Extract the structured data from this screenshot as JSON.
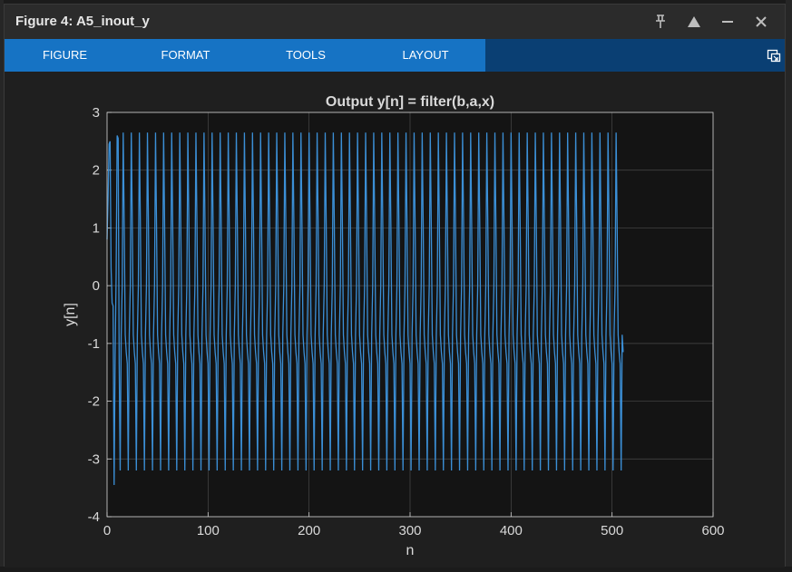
{
  "window": {
    "title": "Figure 4: A5_inout_y",
    "controls": [
      "pin-icon",
      "maximize-icon",
      "minimize-icon",
      "close-icon"
    ],
    "control_glyphs": {
      "pin": "⊥",
      "maximize": "▲",
      "minimize": "–",
      "close": "✕"
    }
  },
  "toolstrip": {
    "tabs": [
      {
        "label": "FIGURE"
      },
      {
        "label": "FORMAT"
      },
      {
        "label": "TOOLS"
      },
      {
        "label": "LAYOUT"
      }
    ],
    "undock_icon": "undock-icon"
  },
  "colors": {
    "tab_bar": "#1673c4",
    "toolstrip_bg": "#0a3f73",
    "axes_bg": "#141414",
    "line": "#3b8fd6",
    "grid": "#4a4a4a",
    "text": "#d9d9d9"
  },
  "chart_data": {
    "type": "line",
    "title": "Output y[n] = filter(b,a,x)",
    "xlabel": "n",
    "ylabel": "y[n]",
    "xlim": [
      0,
      600
    ],
    "ylim": [
      -4,
      3
    ],
    "xticks": [
      0,
      100,
      200,
      300,
      400,
      500,
      600
    ],
    "yticks": [
      3,
      2,
      1,
      0,
      -1,
      -2,
      -3,
      -4
    ],
    "grid": true,
    "n_samples": 512,
    "series": [
      {
        "pattern_period": 8,
        "cycle_values": [
          2.65,
          1.05,
          -0.85,
          -1.15,
          -1.35,
          -3.2,
          -0.85,
          0.0
        ],
        "initial_values": [
          0.8,
          1.5,
          2.45,
          2.5,
          0.3,
          -0.3,
          -0.35,
          -3.45,
          -1.2,
          0.2,
          2.6,
          2.55
        ],
        "last_value": -1.15
      }
    ]
  }
}
